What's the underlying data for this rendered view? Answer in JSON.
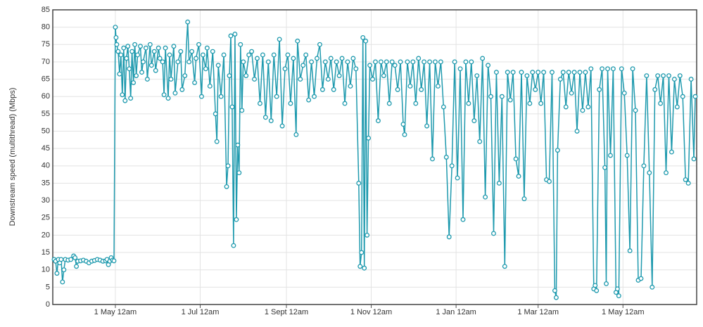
{
  "chart_data": {
    "type": "line",
    "y_label": "Downstream speed (multithread) (Mbps)",
    "xlim": [
      -45,
      418
    ],
    "xticks": [
      {
        "value": 0,
        "label": "1 May 12am"
      },
      {
        "value": 61,
        "label": "1 Jul 12am"
      },
      {
        "value": 123,
        "label": "1 Sept 12am"
      },
      {
        "value": 184,
        "label": "1 Nov 12am"
      },
      {
        "value": 245,
        "label": "1 Jan 12am"
      },
      {
        "value": 304,
        "label": "1 Mar 12am"
      },
      {
        "value": 365,
        "label": "1 May 12am"
      }
    ],
    "ylim": [
      0,
      85
    ],
    "yticks": [
      0,
      5,
      10,
      15,
      20,
      25,
      30,
      35,
      40,
      45,
      50,
      55,
      60,
      65,
      70,
      75,
      80,
      85
    ],
    "grid": true,
    "series": [
      {
        "color": "#1f9aae",
        "x": [
          -44,
          -43,
          -42,
          -41,
          -40,
          -39,
          -38,
          -37,
          -36,
          -34,
          -32,
          -30,
          -29,
          -28,
          -27,
          -25,
          -23,
          -21,
          -19,
          -17,
          -15,
          -13,
          -11,
          -9,
          -7,
          -6,
          -5,
          -4,
          -3,
          -2,
          -1,
          0,
          0.5,
          1,
          2,
          3,
          4,
          5,
          6,
          7,
          8,
          9,
          10,
          11,
          12,
          13,
          14,
          15,
          16,
          18,
          19,
          20,
          22,
          23,
          25,
          26,
          28,
          29,
          31,
          32,
          34,
          35,
          36,
          38,
          39,
          40,
          42,
          43,
          45,
          47,
          48,
          50,
          52,
          53,
          55,
          57,
          58,
          60,
          62,
          63,
          65,
          66,
          68,
          70,
          72,
          73,
          74,
          76,
          78,
          80,
          81,
          82,
          83,
          84,
          85,
          86,
          87,
          88,
          89,
          90,
          91,
          92,
          94,
          96,
          98,
          100,
          102,
          104,
          106,
          108,
          110,
          112,
          114,
          116,
          118,
          120,
          122,
          124,
          126,
          128,
          130,
          131,
          133,
          135,
          137,
          139,
          141,
          143,
          145,
          147,
          149,
          151,
          153,
          155,
          157,
          159,
          161,
          163,
          165,
          167,
          169,
          171,
          173,
          175,
          176,
          177,
          178,
          179,
          180,
          181,
          182,
          183,
          185,
          187,
          189,
          191,
          193,
          195,
          197,
          199,
          201,
          203,
          205,
          207,
          208,
          210,
          212,
          214,
          216,
          218,
          220,
          222,
          224,
          226,
          228,
          230,
          232,
          234,
          236,
          238,
          240,
          242,
          244,
          246,
          248,
          250,
          252,
          254,
          256,
          258,
          260,
          262,
          264,
          266,
          268,
          270,
          272,
          274,
          276,
          278,
          280,
          282,
          284,
          286,
          288,
          290,
          292,
          294,
          296,
          298,
          300,
          302,
          304,
          306,
          308,
          310,
          312,
          314,
          316,
          317,
          318,
          320,
          322,
          324,
          326,
          328,
          330,
          332,
          334,
          336,
          338,
          340,
          342,
          344,
          345,
          346,
          348,
          350,
          352,
          353,
          354,
          356,
          358,
          360,
          361,
          362,
          364,
          366,
          368,
          370,
          372,
          374,
          376,
          378,
          380,
          382,
          384,
          386,
          388,
          390,
          392,
          394,
          396,
          398,
          400,
          402,
          404,
          406,
          408,
          410,
          412,
          414,
          416,
          417
        ],
        "values": [
          13,
          12.5,
          9,
          13,
          12,
          13,
          6.5,
          10,
          13,
          12.8,
          13,
          14,
          13.5,
          11,
          12.5,
          12.6,
          12.8,
          12.5,
          12,
          12.5,
          12.7,
          13,
          12.8,
          12.5,
          12.6,
          13,
          11.5,
          12.5,
          13.5,
          12.8,
          12.6,
          80,
          77,
          75,
          73,
          66.5,
          72,
          60.5,
          74,
          58.8,
          71,
          74.5,
          68,
          59.5,
          73,
          64,
          75,
          66,
          72,
          74.5,
          67,
          70,
          74,
          65,
          75,
          69,
          73,
          67.5,
          74,
          71,
          70,
          60.5,
          74,
          59.5,
          72,
          65,
          74.5,
          61,
          70,
          73,
          62,
          66,
          81.5,
          70,
          73,
          64,
          71,
          75,
          60,
          72,
          68,
          74,
          63,
          73,
          55,
          47,
          69,
          60,
          72,
          34,
          40,
          66,
          77.5,
          57,
          17,
          78,
          24.5,
          46,
          38,
          75,
          56,
          70,
          66,
          72,
          73,
          65,
          71,
          58,
          72,
          54,
          70,
          53,
          72,
          60,
          76.5,
          51.5,
          68,
          72,
          58,
          71,
          49,
          76,
          65,
          69,
          72,
          59,
          70,
          60,
          71,
          75,
          62,
          70,
          65,
          71,
          62,
          70,
          66,
          71,
          58,
          70,
          63,
          71,
          68,
          35,
          11,
          15,
          77,
          10.5,
          76,
          20,
          48,
          69,
          65,
          70,
          53,
          70,
          66,
          70,
          58,
          70,
          69,
          62,
          70,
          52,
          49,
          70,
          63,
          70,
          58,
          71,
          62,
          70,
          51.5,
          70,
          42,
          70,
          63,
          70,
          57,
          42.5,
          19.5,
          40,
          70,
          36.5,
          68,
          24.5,
          70,
          58,
          70,
          53,
          66,
          47,
          71,
          31,
          69,
          60,
          20.5,
          67,
          35,
          60,
          11,
          67,
          59,
          67,
          42,
          37,
          67,
          30.5,
          66,
          58,
          67,
          62,
          67,
          58,
          67,
          36,
          35.5,
          67,
          4,
          2,
          44.5,
          65,
          67,
          57,
          67,
          61,
          67,
          50,
          67,
          56,
          67,
          57,
          68,
          4.5,
          5.5,
          4,
          62,
          68,
          39.5,
          6,
          68,
          43,
          68,
          3.5,
          4.5,
          2.5,
          68,
          61,
          43,
          15.5,
          68,
          56,
          7,
          7.5,
          40,
          66,
          38,
          5,
          62,
          66,
          58,
          66,
          38,
          66,
          44,
          65,
          57,
          66,
          60,
          36,
          35,
          65,
          42,
          60
        ]
      }
    ]
  }
}
